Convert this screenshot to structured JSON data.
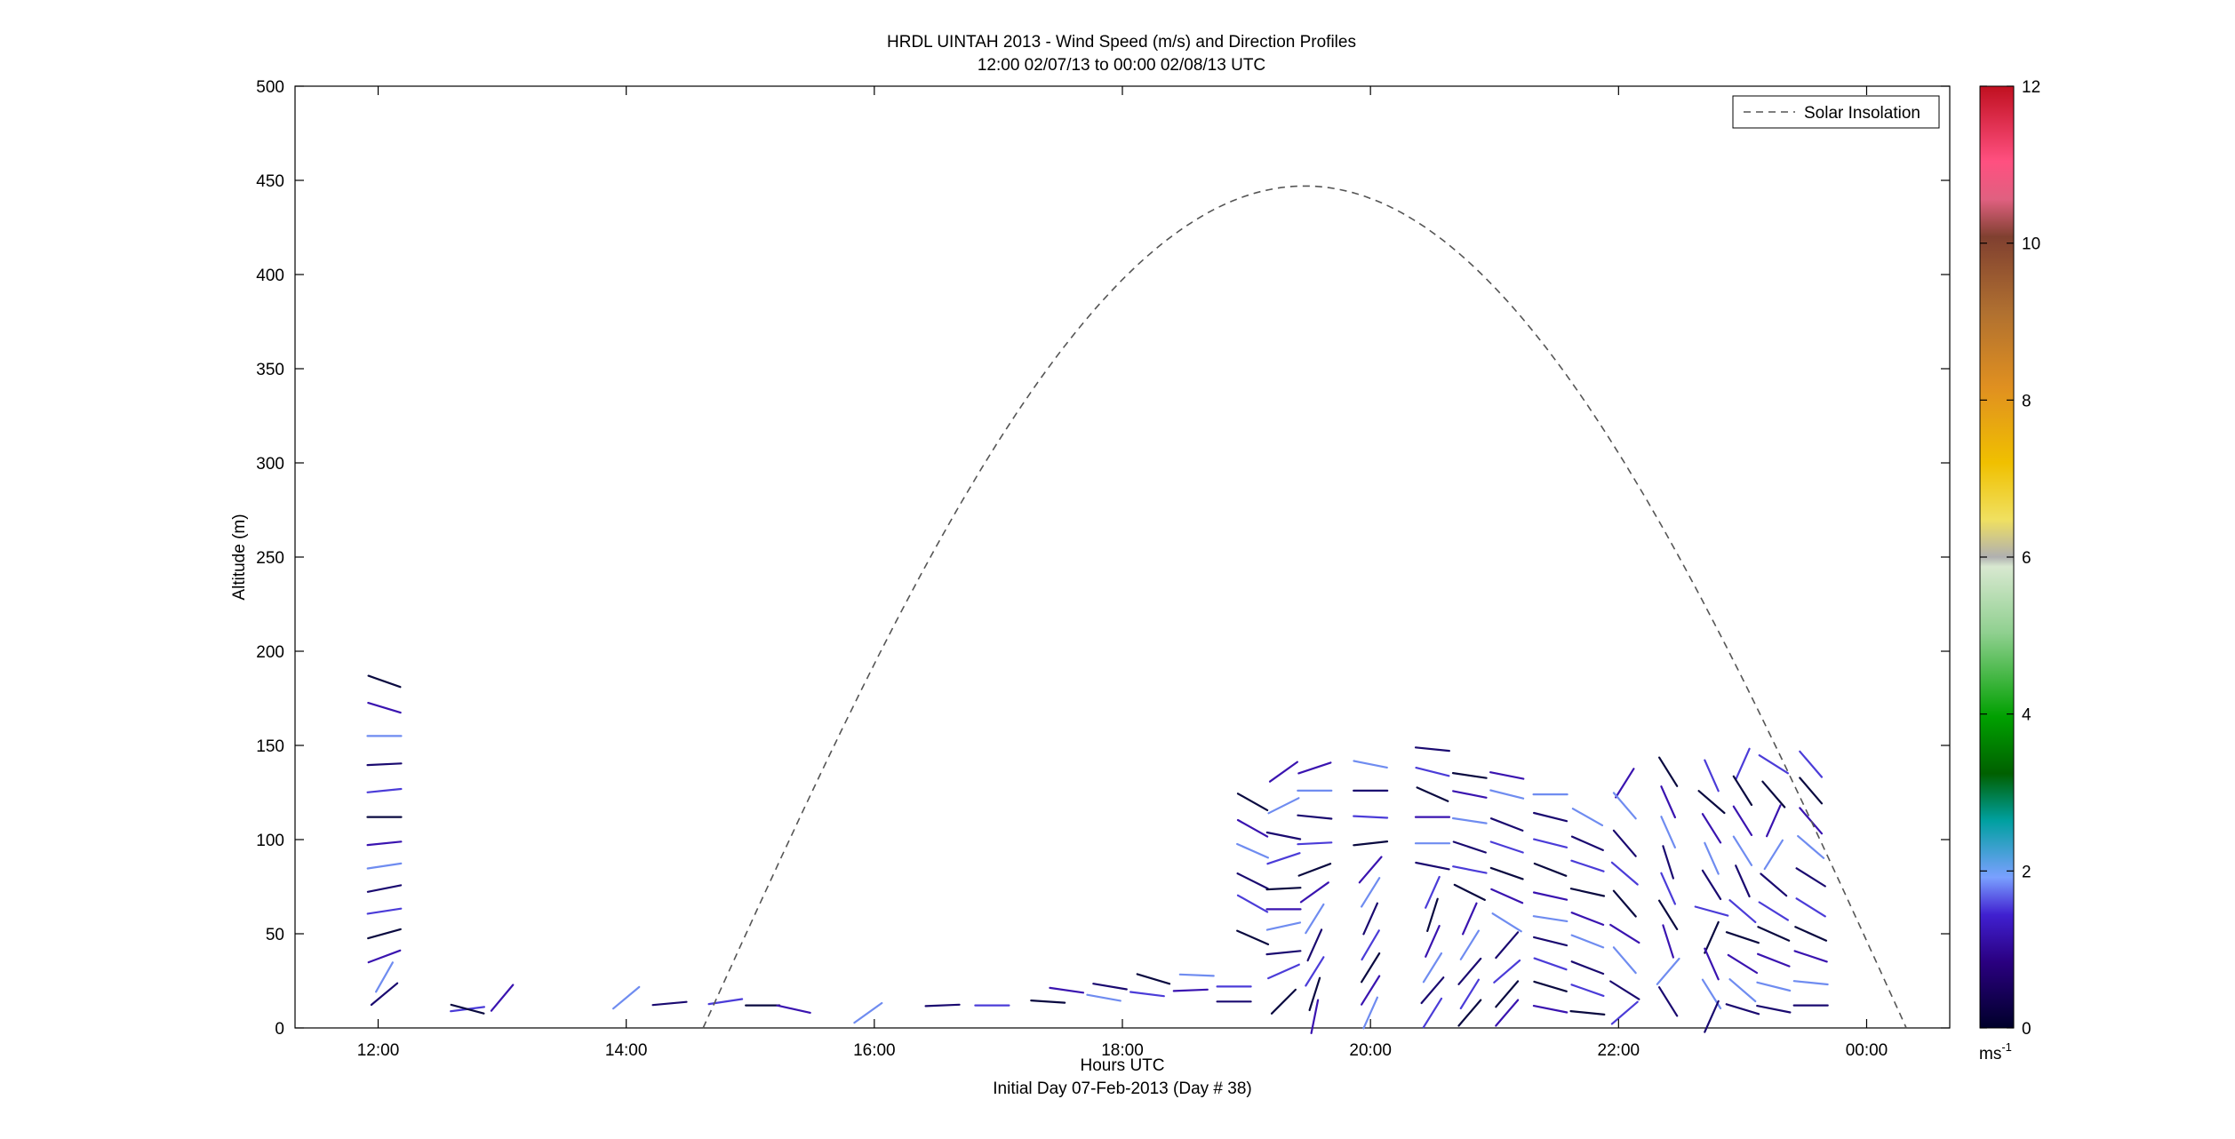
{
  "chart_data": {
    "type": "wind-profile",
    "title": "HRDL UINTAH 2013 - Wind Speed (m/s) and Direction Profiles",
    "subtitle": "12:00 02/07/13 to 00:00 02/08/13  UTC",
    "xlabel": "Hours UTC",
    "xlabel_note": "Initial Day 07-Feb-2013 (Day # 38)",
    "ylabel": "Altitude (m)",
    "x_range_hours": [
      11.33,
      24.67
    ],
    "ylim": [
      0,
      500
    ],
    "x_ticks": [
      {
        "hour": 12,
        "label": "12:00"
      },
      {
        "hour": 14,
        "label": "14:00"
      },
      {
        "hour": 16,
        "label": "16:00"
      },
      {
        "hour": 18,
        "label": "18:00"
      },
      {
        "hour": 20,
        "label": "20:00"
      },
      {
        "hour": 22,
        "label": "22:00"
      },
      {
        "hour": 24,
        "label": "00:00"
      }
    ],
    "y_ticks": [
      0,
      50,
      100,
      150,
      200,
      250,
      300,
      350,
      400,
      450,
      500
    ],
    "legend": {
      "entries": [
        "Solar Insolation"
      ],
      "placement": "top-right"
    },
    "solar_insolation": {
      "style": "dashed",
      "start_hour": 14.62,
      "peak_hour": 19.47,
      "end_hour": 24.32,
      "peak_altitude_units": 447
    },
    "colorbar": {
      "unit": "ms",
      "unit_exponent": "-1",
      "min": 0,
      "max": 12,
      "ticks": [
        0,
        2,
        4,
        6,
        8,
        10,
        12
      ]
    },
    "barbs": [
      [
        12.05,
        184,
        1.0,
        -0.35
      ],
      [
        12.05,
        170,
        1.0,
        -0.3
      ],
      [
        12.05,
        155,
        1.2,
        0
      ],
      [
        12.05,
        140,
        1.0,
        0.05
      ],
      [
        12.05,
        126,
        1.0,
        0.1
      ],
      [
        12.05,
        112,
        1.1,
        0
      ],
      [
        12.05,
        98,
        1.0,
        0.1
      ],
      [
        12.05,
        86,
        1.0,
        0.15
      ],
      [
        12.05,
        74,
        1.0,
        0.2
      ],
      [
        12.05,
        62,
        1.0,
        0.15
      ],
      [
        12.05,
        50,
        0.9,
        0.25
      ],
      [
        12.05,
        38,
        0.8,
        0.3
      ],
      [
        12.05,
        27,
        0.4,
        0.7
      ],
      [
        12.05,
        18,
        0.6,
        0.5
      ],
      [
        12.72,
        10,
        1.6,
        0.2
      ],
      [
        12.72,
        10,
        1.5,
        -0.4
      ],
      [
        13.0,
        16,
        0.5,
        0.6
      ],
      [
        14.0,
        16,
        0.6,
        0.5
      ],
      [
        14.35,
        13,
        1.1,
        0.1
      ],
      [
        14.8,
        14,
        1.0,
        0.15
      ],
      [
        15.1,
        12,
        1.1,
        0
      ],
      [
        15.35,
        10,
        0.9,
        -0.2
      ],
      [
        15.95,
        8,
        0.7,
        0.5
      ],
      [
        16.55,
        12,
        1.2,
        0.05
      ],
      [
        16.95,
        12,
        1.2,
        0
      ],
      [
        17.4,
        14,
        1.5,
        -0.1
      ],
      [
        17.55,
        20,
        1.4,
        -0.2
      ],
      [
        17.85,
        16,
        1.4,
        -0.25
      ],
      [
        17.9,
        22,
        1.2,
        -0.2
      ],
      [
        18.2,
        18,
        1.6,
        -0.2
      ],
      [
        18.25,
        26,
        1.0,
        -0.3
      ],
      [
        18.55,
        20,
        1.2,
        0.05
      ],
      [
        18.6,
        28,
        1.2,
        -0.05
      ],
      [
        18.9,
        14,
        1.0,
        0
      ],
      [
        18.9,
        22,
        0.9,
        0
      ],
      [
        19.05,
        120,
        0.8,
        -0.45
      ],
      [
        19.05,
        106,
        0.8,
        -0.45
      ],
      [
        19.05,
        94,
        0.9,
        -0.4
      ],
      [
        19.05,
        78,
        0.9,
        -0.45
      ],
      [
        19.05,
        66,
        0.8,
        -0.45
      ],
      [
        19.05,
        48,
        0.8,
        -0.35
      ],
      [
        19.3,
        136,
        0.7,
        0.5
      ],
      [
        19.3,
        118,
        0.8,
        0.4
      ],
      [
        19.3,
        102,
        1.0,
        -0.2
      ],
      [
        19.3,
        90,
        0.9,
        0.3
      ],
      [
        19.3,
        74,
        1.0,
        0.05
      ],
      [
        19.3,
        63,
        1.0,
        0
      ],
      [
        19.3,
        54,
        0.9,
        0.2
      ],
      [
        19.3,
        40,
        1.0,
        0.1
      ],
      [
        19.3,
        30,
        0.9,
        0.4
      ],
      [
        19.3,
        14,
        0.6,
        0.6
      ],
      [
        19.55,
        138,
        0.9,
        0.3
      ],
      [
        19.55,
        126,
        1.0,
        0
      ],
      [
        19.55,
        112,
        1.0,
        -0.1
      ],
      [
        19.55,
        98,
        1.0,
        0.05
      ],
      [
        19.55,
        84,
        0.8,
        0.3
      ],
      [
        19.55,
        72,
        0.7,
        0.5
      ],
      [
        19.55,
        58,
        0.5,
        0.8
      ],
      [
        19.55,
        44,
        0.4,
        0.9
      ],
      [
        19.55,
        30,
        0.5,
        0.8
      ],
      [
        19.55,
        18,
        0.3,
        0.95
      ],
      [
        19.55,
        6,
        0.2,
        1
      ],
      [
        20.0,
        140,
        1.0,
        -0.2
      ],
      [
        20.0,
        126,
        1.0,
        0
      ],
      [
        20.0,
        112,
        1.0,
        -0.05
      ],
      [
        20.0,
        98,
        0.9,
        0.1
      ],
      [
        20.0,
        84,
        0.6,
        0.7
      ],
      [
        20.0,
        72,
        0.5,
        0.8
      ],
      [
        20.0,
        58,
        0.4,
        0.9
      ],
      [
        20.0,
        44,
        0.5,
        0.85
      ],
      [
        20.0,
        32,
        0.5,
        0.8
      ],
      [
        20.0,
        20,
        0.5,
        0.8
      ],
      [
        20.0,
        8,
        0.4,
        0.9
      ],
      [
        20.5,
        148,
        1.0,
        -0.1
      ],
      [
        20.5,
        136,
        1.0,
        -0.25
      ],
      [
        20.5,
        124,
        0.9,
        -0.4
      ],
      [
        20.5,
        112,
        1.0,
        0
      ],
      [
        20.5,
        98,
        1.1,
        0
      ],
      [
        20.5,
        86,
        1.0,
        -0.2
      ],
      [
        20.5,
        72,
        0.4,
        0.9
      ],
      [
        20.5,
        60,
        0.3,
        0.95
      ],
      [
        20.5,
        46,
        0.4,
        0.9
      ],
      [
        20.5,
        32,
        0.5,
        0.8
      ],
      [
        20.5,
        20,
        0.6,
        0.7
      ],
      [
        20.5,
        8,
        0.5,
        0.8
      ],
      [
        20.8,
        134,
        1.0,
        -0.15
      ],
      [
        20.8,
        124,
        1.0,
        -0.2
      ],
      [
        20.8,
        110,
        1.0,
        -0.15
      ],
      [
        20.8,
        96,
        0.9,
        -0.3
      ],
      [
        20.8,
        84,
        1.0,
        -0.2
      ],
      [
        20.8,
        72,
        0.8,
        -0.4
      ],
      [
        20.8,
        58,
        0.4,
        0.9
      ],
      [
        20.8,
        44,
        0.5,
        0.8
      ],
      [
        20.8,
        30,
        0.6,
        0.7
      ],
      [
        20.8,
        18,
        0.5,
        0.8
      ],
      [
        20.8,
        8,
        0.6,
        0.7
      ],
      [
        21.1,
        134,
        1.0,
        -0.2
      ],
      [
        21.1,
        124,
        1.0,
        -0.25
      ],
      [
        21.1,
        108,
        0.9,
        -0.35
      ],
      [
        21.1,
        96,
        0.9,
        -0.3
      ],
      [
        21.1,
        82,
        1.0,
        -0.35
      ],
      [
        21.1,
        70,
        0.9,
        -0.4
      ],
      [
        21.1,
        56,
        0.8,
        -0.5
      ],
      [
        21.1,
        44,
        0.6,
        0.7
      ],
      [
        21.1,
        30,
        0.7,
        0.6
      ],
      [
        21.1,
        18,
        0.6,
        0.7
      ],
      [
        21.1,
        8,
        0.6,
        0.7
      ],
      [
        21.45,
        124,
        1.6,
        0
      ],
      [
        21.45,
        112,
        1.0,
        -0.25
      ],
      [
        21.45,
        98,
        1.0,
        -0.25
      ],
      [
        21.45,
        84,
        0.9,
        -0.35
      ],
      [
        21.45,
        70,
        0.9,
        -0.2
      ],
      [
        21.45,
        58,
        1.0,
        -0.15
      ],
      [
        21.45,
        46,
        1.0,
        -0.25
      ],
      [
        21.45,
        34,
        1.0,
        -0.35
      ],
      [
        21.45,
        22,
        1.0,
        -0.3
      ],
      [
        21.45,
        10,
        1.0,
        -0.2
      ],
      [
        21.75,
        112,
        0.8,
        -0.45
      ],
      [
        21.75,
        98,
        0.8,
        -0.35
      ],
      [
        21.75,
        86,
        0.9,
        -0.3
      ],
      [
        21.75,
        72,
        0.9,
        -0.2
      ],
      [
        21.75,
        58,
        0.9,
        -0.35
      ],
      [
        21.75,
        46,
        0.9,
        -0.35
      ],
      [
        21.75,
        32,
        0.9,
        -0.35
      ],
      [
        21.75,
        20,
        1.0,
        -0.35
      ],
      [
        21.75,
        8,
        1.0,
        -0.1
      ],
      [
        22.05,
        130,
        0.5,
        0.8
      ],
      [
        22.05,
        118,
        0.6,
        -0.7
      ],
      [
        22.05,
        98,
        0.6,
        -0.7
      ],
      [
        22.05,
        82,
        0.7,
        -0.6
      ],
      [
        22.05,
        66,
        0.6,
        -0.7
      ],
      [
        22.05,
        50,
        0.8,
        -0.5
      ],
      [
        22.05,
        36,
        0.6,
        -0.7
      ],
      [
        22.05,
        20,
        0.8,
        -0.5
      ],
      [
        22.05,
        8,
        0.7,
        0.6
      ],
      [
        22.4,
        136,
        0.5,
        -0.8
      ],
      [
        22.4,
        120,
        0.4,
        -0.9
      ],
      [
        22.4,
        104,
        0.4,
        -0.9
      ],
      [
        22.4,
        88,
        0.3,
        -0.95
      ],
      [
        22.4,
        74,
        0.4,
        -0.9
      ],
      [
        22.4,
        60,
        0.5,
        -0.8
      ],
      [
        22.4,
        46,
        0.3,
        -0.95
      ],
      [
        22.4,
        30,
        0.6,
        0.7
      ],
      [
        22.4,
        14,
        0.5,
        -0.8
      ],
      [
        22.75,
        134,
        0.4,
        -0.9
      ],
      [
        22.75,
        120,
        0.7,
        -0.6
      ],
      [
        22.75,
        106,
        0.5,
        -0.8
      ],
      [
        22.75,
        90,
        0.4,
        -0.9
      ],
      [
        22.75,
        76,
        0.5,
        -0.8
      ],
      [
        22.75,
        62,
        0.9,
        -0.25
      ],
      [
        22.75,
        48,
        0.4,
        0.9
      ],
      [
        22.75,
        34,
        0.4,
        -0.9
      ],
      [
        22.75,
        18,
        0.5,
        -0.8
      ],
      [
        22.75,
        6,
        0.4,
        0.9
      ],
      [
        23.0,
        140,
        0.4,
        0.9
      ],
      [
        23.0,
        126,
        0.5,
        -0.8
      ],
      [
        23.0,
        110,
        0.5,
        -0.8
      ],
      [
        23.0,
        94,
        0.5,
        -0.8
      ],
      [
        23.0,
        78,
        0.4,
        -0.9
      ],
      [
        23.0,
        62,
        0.7,
        -0.6
      ],
      [
        23.0,
        48,
        0.9,
        -0.3
      ],
      [
        23.0,
        34,
        0.8,
        -0.5
      ],
      [
        23.0,
        20,
        0.7,
        -0.6
      ],
      [
        23.0,
        10,
        1.0,
        -0.3
      ],
      [
        23.25,
        140,
        0.8,
        -0.5
      ],
      [
        23.25,
        124,
        0.6,
        -0.7
      ],
      [
        23.25,
        110,
        0.4,
        0.9
      ],
      [
        23.25,
        92,
        0.5,
        0.8
      ],
      [
        23.25,
        76,
        0.7,
        -0.6
      ],
      [
        23.25,
        62,
        0.8,
        -0.5
      ],
      [
        23.25,
        50,
        0.9,
        -0.4
      ],
      [
        23.25,
        36,
        0.9,
        -0.35
      ],
      [
        23.25,
        22,
        1.0,
        -0.25
      ],
      [
        23.25,
        10,
        1.0,
        -0.2
      ],
      [
        23.55,
        140,
        0.6,
        -0.7
      ],
      [
        23.55,
        126,
        0.6,
        -0.7
      ],
      [
        23.55,
        110,
        0.6,
        -0.7
      ],
      [
        23.55,
        96,
        0.7,
        -0.6
      ],
      [
        23.55,
        80,
        0.8,
        -0.5
      ],
      [
        23.55,
        64,
        0.8,
        -0.5
      ],
      [
        23.55,
        50,
        0.9,
        -0.4
      ],
      [
        23.55,
        38,
        0.9,
        -0.3
      ],
      [
        23.55,
        24,
        1.0,
        -0.1
      ],
      [
        23.55,
        12,
        1.0,
        0
      ]
    ]
  }
}
